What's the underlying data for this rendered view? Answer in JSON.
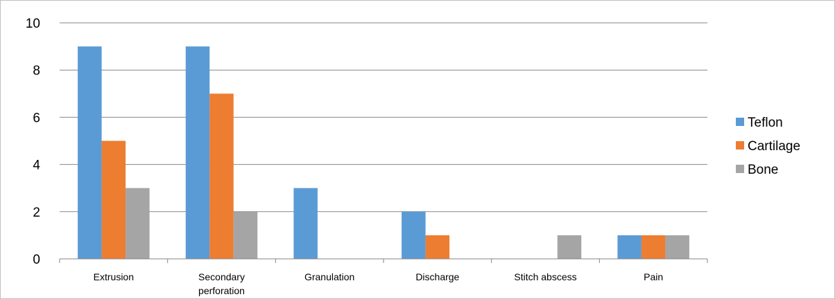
{
  "chart_data": {
    "type": "bar",
    "categories": [
      "Extrusion",
      "Secondary perforation",
      "Granulation",
      "Discharge",
      "Stitch abscess",
      "Pain"
    ],
    "category_lines": [
      [
        "Extrusion"
      ],
      [
        "Secondary",
        "perforation"
      ],
      [
        "Granulation"
      ],
      [
        "Discharge"
      ],
      [
        "Stitch abscess"
      ],
      [
        "Pain"
      ]
    ],
    "series": [
      {
        "name": "Teflon",
        "color": "#5b9bd5",
        "values": [
          9,
          9,
          3,
          2,
          0,
          1
        ]
      },
      {
        "name": "Cartilage",
        "color": "#ed7d31",
        "values": [
          5,
          7,
          0,
          1,
          0,
          1
        ]
      },
      {
        "name": "Bone",
        "color": "#a5a5a5",
        "values": [
          3,
          2,
          0,
          0,
          1,
          1
        ]
      }
    ],
    "ylim": [
      0,
      10
    ],
    "yticks": [
      0,
      2,
      4,
      6,
      8,
      10
    ],
    "grid": true,
    "legend": "right",
    "title": "",
    "xlabel": "",
    "ylabel": ""
  }
}
